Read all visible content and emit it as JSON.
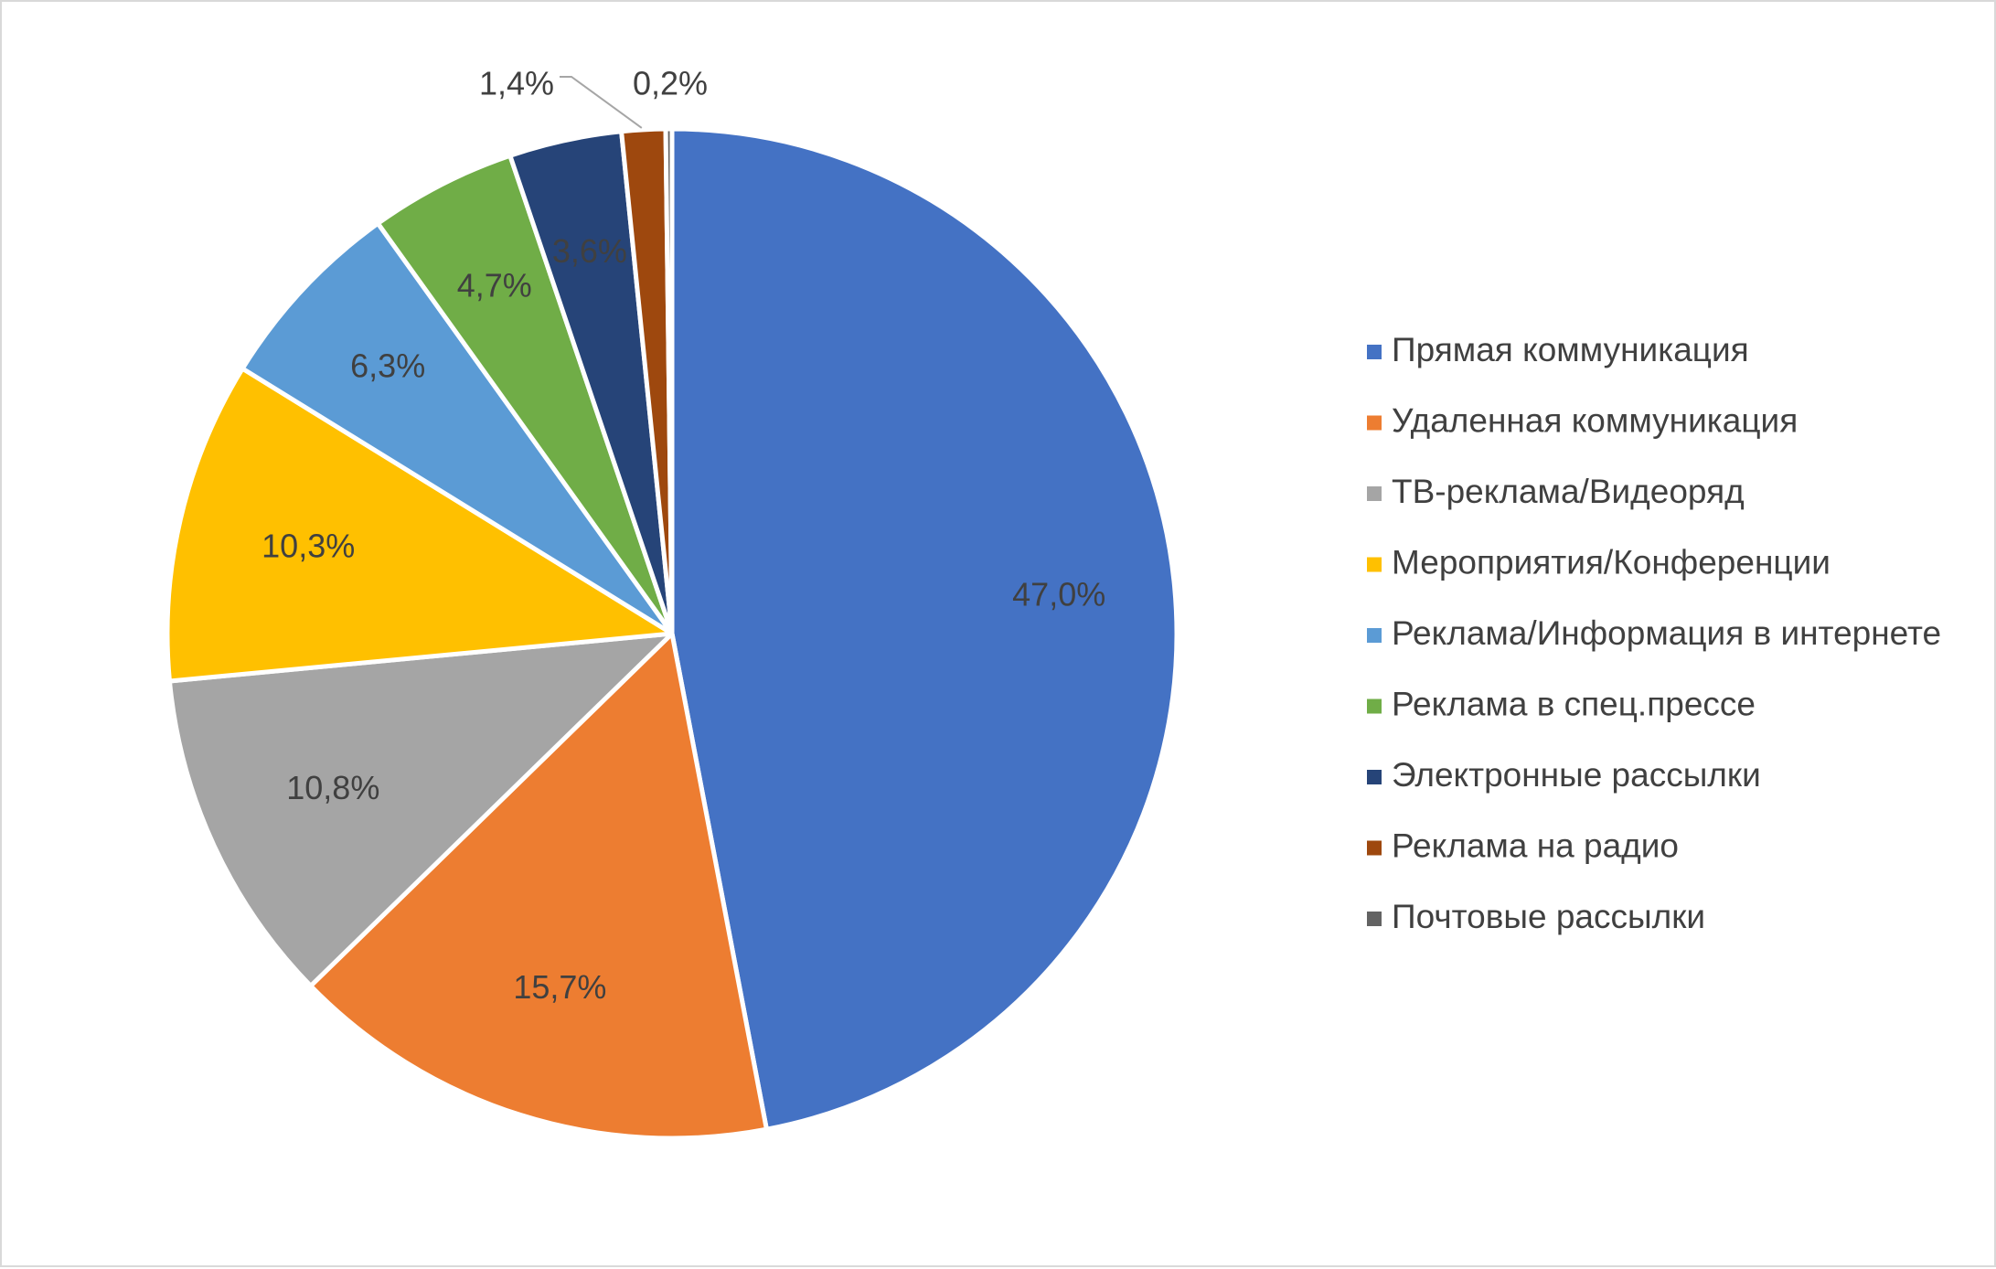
{
  "chart_data": {
    "type": "pie",
    "title": "",
    "start_angle_deg": 0,
    "direction": "clockwise",
    "legend_position": "right",
    "slices": [
      {
        "name": "Прямая коммуникация",
        "value": 47.0,
        "label": "47,0%",
        "color": "#4472C4"
      },
      {
        "name": "Удаленная коммуникация",
        "value": 15.7,
        "label": "15,7%",
        "color": "#ED7D31"
      },
      {
        "name": "ТВ-реклама/Видеоряд",
        "value": 10.8,
        "label": "10,8%",
        "color": "#A5A5A5"
      },
      {
        "name": "Мероприятия/Конференции",
        "value": 10.3,
        "label": "10,3%",
        "color": "#FFC000"
      },
      {
        "name": "Реклама/Информация в интернете",
        "value": 6.3,
        "label": "6,3%",
        "color": "#5B9BD5"
      },
      {
        "name": "Реклама в спец.прессе",
        "value": 4.7,
        "label": "4,7%",
        "color": "#70AD47"
      },
      {
        "name": "Электронные рассылки",
        "value": 3.6,
        "label": "3,6%",
        "color": "#264478"
      },
      {
        "name": "Реклама на радио",
        "value": 1.4,
        "label": "1,4%",
        "color": "#9E480E"
      },
      {
        "name": "Почтовые рассылки",
        "value": 0.2,
        "label": "0,2%",
        "color": "#636363"
      }
    ]
  }
}
